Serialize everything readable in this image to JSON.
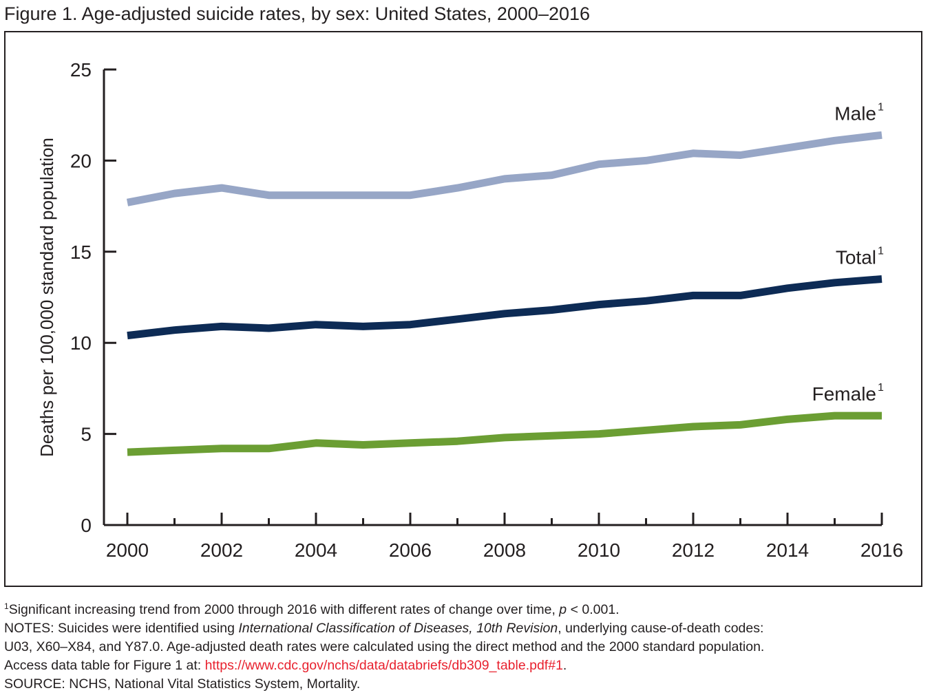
{
  "figure": {
    "title": "Figure 1. Age-adjusted suicide rates, by sex: United States, 2000–2016"
  },
  "chart_data": {
    "type": "line",
    "title": "Figure 1. Age-adjusted suicide rates, by sex: United States, 2000–2016",
    "ylabel": "Deaths per 100,000 standard population",
    "xlabel": "",
    "ylim": [
      0,
      25
    ],
    "xlim": [
      2000,
      2016
    ],
    "yticks": [
      0,
      5,
      10,
      15,
      20,
      25
    ],
    "xticks": [
      2000,
      2002,
      2004,
      2006,
      2008,
      2010,
      2012,
      2014,
      2016
    ],
    "grid": false,
    "legend": "inline labels at right end of each line",
    "x": [
      2000,
      2001,
      2002,
      2003,
      2004,
      2005,
      2006,
      2007,
      2008,
      2009,
      2010,
      2011,
      2012,
      2013,
      2014,
      2015,
      2016
    ],
    "series": [
      {
        "name": "Male",
        "marker": "1",
        "color": "#97a6c6",
        "values": [
          17.7,
          18.2,
          18.5,
          18.1,
          18.1,
          18.1,
          18.1,
          18.5,
          19.0,
          19.2,
          19.8,
          20.0,
          20.4,
          20.3,
          20.7,
          21.1,
          21.4
        ]
      },
      {
        "name": "Total",
        "marker": "1",
        "color": "#0d2b55",
        "values": [
          10.4,
          10.7,
          10.9,
          10.8,
          11.0,
          10.9,
          11.0,
          11.3,
          11.6,
          11.8,
          12.1,
          12.3,
          12.6,
          12.6,
          13.0,
          13.3,
          13.5
        ]
      },
      {
        "name": "Female",
        "marker": "1",
        "color": "#6b9e33",
        "values": [
          4.0,
          4.1,
          4.2,
          4.2,
          4.5,
          4.4,
          4.5,
          4.6,
          4.8,
          4.9,
          5.0,
          5.2,
          5.4,
          5.5,
          5.8,
          6.0,
          6.0
        ]
      }
    ]
  },
  "notes": {
    "footnote_marker": "1",
    "footnote_text": "Significant increasing trend from 2000 through 2016 with different rates of change over time, ",
    "footnote_p": "p",
    "footnote_end": " < 0.001.",
    "notes_prefix": "NOTES: Suicides were identified using ",
    "notes_icd": "International Classification of Diseases, 10th Revision",
    "notes_suffix": ", underlying cause-of-death codes:",
    "notes_line2": "U03, X60–X84, and Y87.0. Age-adjusted death rates were calculated using the direct method and the 2000 standard population.",
    "access_prefix": "Access data table for Figure 1 at: ",
    "access_link": "https://www.cdc.gov/nchs/data/databriefs/db309_table.pdf#1",
    "access_suffix": ".",
    "source": "SOURCE: NCHS, National Vital Statistics System, Mortality."
  }
}
